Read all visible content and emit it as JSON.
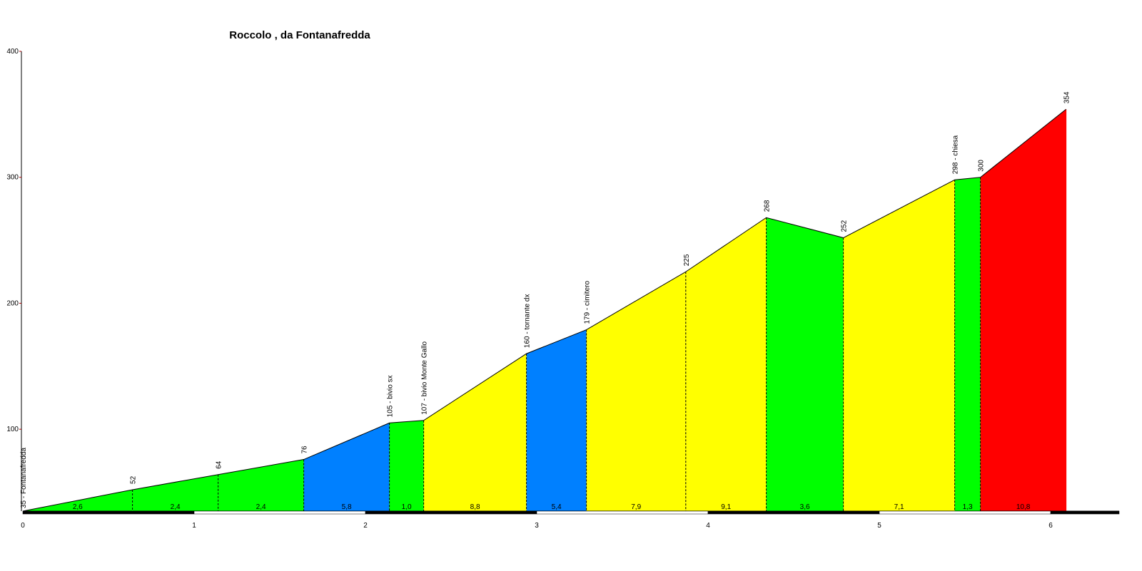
{
  "chart_data": {
    "type": "area",
    "title": "Roccolo , da Fontanafredda",
    "xlabel": "",
    "ylabel": "",
    "xlim": [
      0,
      6.4
    ],
    "ylim": [
      35,
      400
    ],
    "x_ticks": [
      0,
      1,
      2,
      3,
      4,
      5,
      6
    ],
    "y_ticks": [
      100,
      200,
      300,
      400
    ],
    "grid": false,
    "legend": "none",
    "profile": [
      {
        "x": 0.0,
        "y": 35,
        "label": "35 - Fontanafredda"
      },
      {
        "x": 0.64,
        "y": 52,
        "label": "52"
      },
      {
        "x": 1.14,
        "y": 64,
        "label": "64"
      },
      {
        "x": 1.64,
        "y": 76,
        "label": "76"
      },
      {
        "x": 2.14,
        "y": 105,
        "label": "105 - bivio sx"
      },
      {
        "x": 2.34,
        "y": 107,
        "label": "107 - bivio Monte Gallo"
      },
      {
        "x": 2.94,
        "y": 160,
        "label": "160 - tornante dx"
      },
      {
        "x": 3.29,
        "y": 179,
        "label": "179 - cimitero"
      },
      {
        "x": 3.87,
        "y": 225,
        "label": "225"
      },
      {
        "x": 4.34,
        "y": 268,
        "label": "268"
      },
      {
        "x": 4.79,
        "y": 252,
        "label": "252"
      },
      {
        "x": 5.44,
        "y": 298,
        "label": "298 - chiesa"
      },
      {
        "x": 5.59,
        "y": 300,
        "label": "300"
      },
      {
        "x": 6.09,
        "y": 354,
        "label": "354"
      }
    ],
    "segments": [
      {
        "gradient": "2,6",
        "color": "#00ff00"
      },
      {
        "gradient": "2,4",
        "color": "#00ff00"
      },
      {
        "gradient": "2,4",
        "color": "#00ff00"
      },
      {
        "gradient": "5,8",
        "color": "#0080ff"
      },
      {
        "gradient": "1,0",
        "color": "#00ff00"
      },
      {
        "gradient": "8,8",
        "color": "#ffff00"
      },
      {
        "gradient": "5,4",
        "color": "#0080ff"
      },
      {
        "gradient": "7,9",
        "color": "#ffff00"
      },
      {
        "gradient": "9,1",
        "color": "#ffff00"
      },
      {
        "gradient": "3,6",
        "color": "#00ff00"
      },
      {
        "gradient": "7,1",
        "color": "#ffff00"
      },
      {
        "gradient": "1,3",
        "color": "#00ff00"
      },
      {
        "gradient": "10,8",
        "color": "#ff0000"
      }
    ],
    "colors": {
      "axis": "#000000",
      "axis_left": "#b00000",
      "tick_mark": "#b00000",
      "scale_dark": "#000000",
      "scale_light": "#ffffff"
    }
  }
}
